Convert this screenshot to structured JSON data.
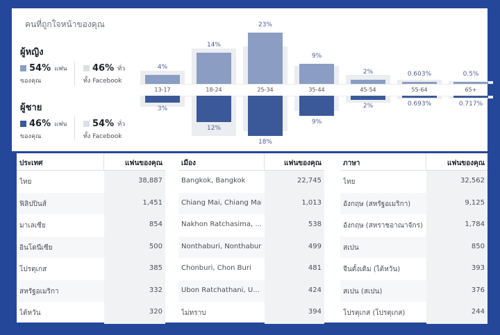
{
  "audience": {
    "title": "คนที่ถูกใจหน้าของคุณ",
    "women": {
      "label": "ผู้หญิง",
      "fans_pct": "54%",
      "fans_word": "แฟน",
      "fans_sub": "ของคุณ",
      "all_pct": "46%",
      "all_word": "ทั่ว",
      "all_sub": "ทั้ง Facebook"
    },
    "men": {
      "label": "ผู้ชาย",
      "fans_pct": "46%",
      "fans_word": "แฟน",
      "fans_sub": "ของคุณ",
      "all_pct": "54%",
      "all_word": "ทั่ว",
      "all_sub": "ทั้ง Facebook"
    },
    "colors": {
      "women": "#8b9dc3",
      "men": "#3b5998",
      "background_bar": "#ebedf0"
    }
  },
  "chart_data": {
    "type": "bar",
    "categories": [
      "13-17",
      "18-24",
      "25-34",
      "35-44",
      "45-54",
      "55-64",
      "65+"
    ],
    "series": [
      {
        "name": "ผู้หญิง",
        "values": [
          4,
          14,
          23,
          9,
          2,
          0.603,
          0.5
        ],
        "labels": [
          "4%",
          "14%",
          "23%",
          "9%",
          "2%",
          "0.603%",
          "0.5%"
        ]
      },
      {
        "name": "ผู้ชาย",
        "values": [
          3,
          12,
          18,
          9,
          2,
          0.693,
          0.717
        ],
        "labels": [
          "3%",
          "12%",
          "18%",
          "9%",
          "2%",
          "0.693%",
          "0.717%"
        ]
      }
    ],
    "facebook_overall_women": [
      6,
      16,
      17,
      8,
      4,
      2,
      1
    ],
    "facebook_overall_men": [
      5,
      18,
      16,
      7,
      3,
      1.5,
      1
    ]
  },
  "countries": {
    "header": [
      "ประเทศ",
      "แฟนของคุณ"
    ],
    "rows": [
      [
        "ไทย",
        "38,887"
      ],
      [
        "ฟิลิปปินส์",
        "1,451"
      ],
      [
        "มาเลเซีย",
        "854"
      ],
      [
        "อินโดนีเซีย",
        "500"
      ],
      [
        "โปรตุเกส",
        "385"
      ],
      [
        "สหรัฐอเมริกา",
        "332"
      ],
      [
        "ไต้หวัน",
        "320"
      ]
    ]
  },
  "cities": {
    "header": [
      "เมือง",
      "แฟนของคุณ"
    ],
    "rows": [
      [
        "Bangkok, Bangkok",
        "22,745"
      ],
      [
        "Chiang Mai, Chiang Mai",
        "1,013"
      ],
      [
        "Nakhon Ratchasima, ...",
        "538"
      ],
      [
        "Nonthaburi, Nonthaburi",
        "499"
      ],
      [
        "Chonburi, Chon Buri",
        "481"
      ],
      [
        "Ubon Ratchathani, U...",
        "424"
      ],
      [
        "ไม่ทราบ",
        "394"
      ]
    ]
  },
  "languages": {
    "header": [
      "ภาษา",
      "แฟนของคุณ"
    ],
    "rows": [
      [
        "ไทย",
        "32,562"
      ],
      [
        "อังกฤษ (สหรัฐอเมริกา)",
        "9,125"
      ],
      [
        "อังกฤษ (สหราชอาณาจักร)",
        "1,784"
      ],
      [
        "สเปน",
        "850"
      ],
      [
        "จีนดั้งเดิม (ไต้หวัน)",
        "393"
      ],
      [
        "สเปน (สเปน)",
        "376"
      ],
      [
        "โปรตุเกส (โปรตุเกส)",
        "244"
      ]
    ]
  }
}
